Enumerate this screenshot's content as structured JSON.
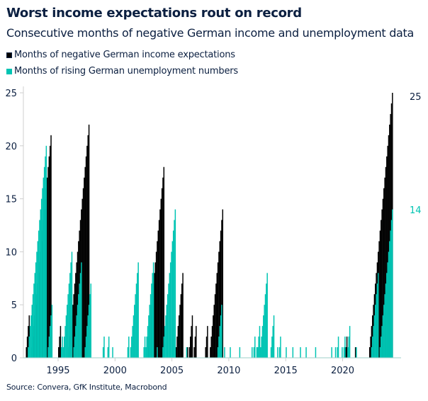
{
  "chart_data": {
    "type": "bar",
    "title": "Worst income expectations rout on record",
    "subtitle": "Consecutive months of negative German income and unemployment data",
    "source": "Source: Convera, GfK Institute, Macrobond",
    "xlabel": "",
    "ylabel": "",
    "ylim": [
      0,
      25
    ],
    "xlim": [
      "1992-01",
      "2024-06"
    ],
    "y_ticks": [
      "0",
      "5",
      "10",
      "15",
      "20",
      "25"
    ],
    "x_ticks": [
      "1995",
      "2000",
      "2005",
      "2010",
      "2015",
      "2020"
    ],
    "grid": false,
    "legend_position": "top-left",
    "note": "Each series is a monthly counter; each run counts 1,2,...,months ending at the given month.",
    "series": [
      {
        "name": "Months of negative German income expectations",
        "color": "#000000",
        "end_label": "25",
        "runs": [
          {
            "end": "1992-06",
            "months": 4
          },
          {
            "end": "1994-05",
            "months": 21
          },
          {
            "end": "1995-03",
            "months": 3
          },
          {
            "end": "1997-09",
            "months": 22
          },
          {
            "end": "2004-04",
            "months": 18
          },
          {
            "end": "2005-12",
            "months": 8
          },
          {
            "end": "2006-05",
            "months": 1
          },
          {
            "end": "2006-10",
            "months": 4
          },
          {
            "end": "2007-02",
            "months": 3
          },
          {
            "end": "2008-02",
            "months": 3
          },
          {
            "end": "2009-06",
            "months": 14
          },
          {
            "end": "2020-05",
            "months": 2
          },
          {
            "end": "2021-02",
            "months": 1
          },
          {
            "end": "2024-05",
            "months": 25
          }
        ]
      },
      {
        "name": "Months of rising German unemployment numbers",
        "color": "#00c4b3",
        "end_label": "14",
        "runs": [
          {
            "end": "1993-12",
            "months": 20
          },
          {
            "end": "1994-06",
            "months": 5
          },
          {
            "end": "1995-05",
            "months": 2
          },
          {
            "end": "1996-03",
            "months": 10
          },
          {
            "end": "1997-01",
            "months": 9
          },
          {
            "end": "1997-11",
            "months": 7
          },
          {
            "end": "1999-01",
            "months": 2
          },
          {
            "end": "1999-06",
            "months": 2
          },
          {
            "end": "1999-10",
            "months": 1
          },
          {
            "end": "2001-03",
            "months": 2
          },
          {
            "end": "2002-01",
            "months": 9
          },
          {
            "end": "2002-08",
            "months": 2
          },
          {
            "end": "2003-05",
            "months": 9
          },
          {
            "end": "2003-09",
            "months": 1
          },
          {
            "end": "2005-04",
            "months": 14
          },
          {
            "end": "2006-04",
            "months": 1
          },
          {
            "end": "2009-05",
            "months": 5
          },
          {
            "end": "2009-08",
            "months": 1
          },
          {
            "end": "2010-02",
            "months": 1
          },
          {
            "end": "2010-12",
            "months": 1
          },
          {
            "end": "2012-01",
            "months": 1
          },
          {
            "end": "2012-04",
            "months": 2
          },
          {
            "end": "2012-06",
            "months": 1
          },
          {
            "end": "2012-09",
            "months": 3
          },
          {
            "end": "2013-05",
            "months": 8
          },
          {
            "end": "2013-12",
            "months": 4
          },
          {
            "end": "2014-04",
            "months": 1
          },
          {
            "end": "2014-07",
            "months": 2
          },
          {
            "end": "2015-01",
            "months": 1
          },
          {
            "end": "2015-08",
            "months": 1
          },
          {
            "end": "2016-04",
            "months": 1
          },
          {
            "end": "2016-10",
            "months": 1
          },
          {
            "end": "2017-08",
            "months": 1
          },
          {
            "end": "2019-01",
            "months": 1
          },
          {
            "end": "2019-05",
            "months": 1
          },
          {
            "end": "2019-08",
            "months": 2
          },
          {
            "end": "2019-12",
            "months": 1
          },
          {
            "end": "2020-03",
            "months": 2
          },
          {
            "end": "2020-08",
            "months": 3
          },
          {
            "end": "2021-03",
            "months": 1
          },
          {
            "end": "2023-02",
            "months": 8
          },
          {
            "end": "2024-05",
            "months": 14
          }
        ]
      }
    ]
  }
}
